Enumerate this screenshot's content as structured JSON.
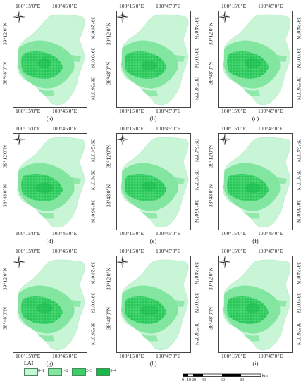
{
  "axes": {
    "top_left": "100°15′0″E",
    "top_right": "100°45′0″E",
    "left_top": "39°12′0″N",
    "left_bottom": "38°48′0″N",
    "right_top": "39°24′0″N",
    "right_mid": "39°0′0″N",
    "right_bottom": "38°36′0″N"
  },
  "panels": [
    {
      "caption": "(a)"
    },
    {
      "caption": "(b)"
    },
    {
      "caption": "(c)"
    },
    {
      "caption": "(d)"
    },
    {
      "caption": "(e)"
    },
    {
      "caption": "(f)"
    },
    {
      "caption": "(g)"
    },
    {
      "caption": "(h)"
    },
    {
      "caption": "(i)"
    }
  ],
  "legend": {
    "title": "LAI",
    "classes": [
      {
        "label": "0–1",
        "color": "#c8f5d6"
      },
      {
        "label": "1–2",
        "color": "#82e6a0"
      },
      {
        "label": "2–3",
        "color": "#38d066"
      },
      {
        "label": "3–4",
        "color": "#18b84a"
      }
    ]
  },
  "scalebar": {
    "ticks": [
      "0",
      "10",
      "20",
      "40",
      "60",
      "80"
    ],
    "unit": "km"
  },
  "colors": {
    "background": "#ffffff",
    "low_lai": "#c8f5d6",
    "high_lai": "#18b84a"
  }
}
